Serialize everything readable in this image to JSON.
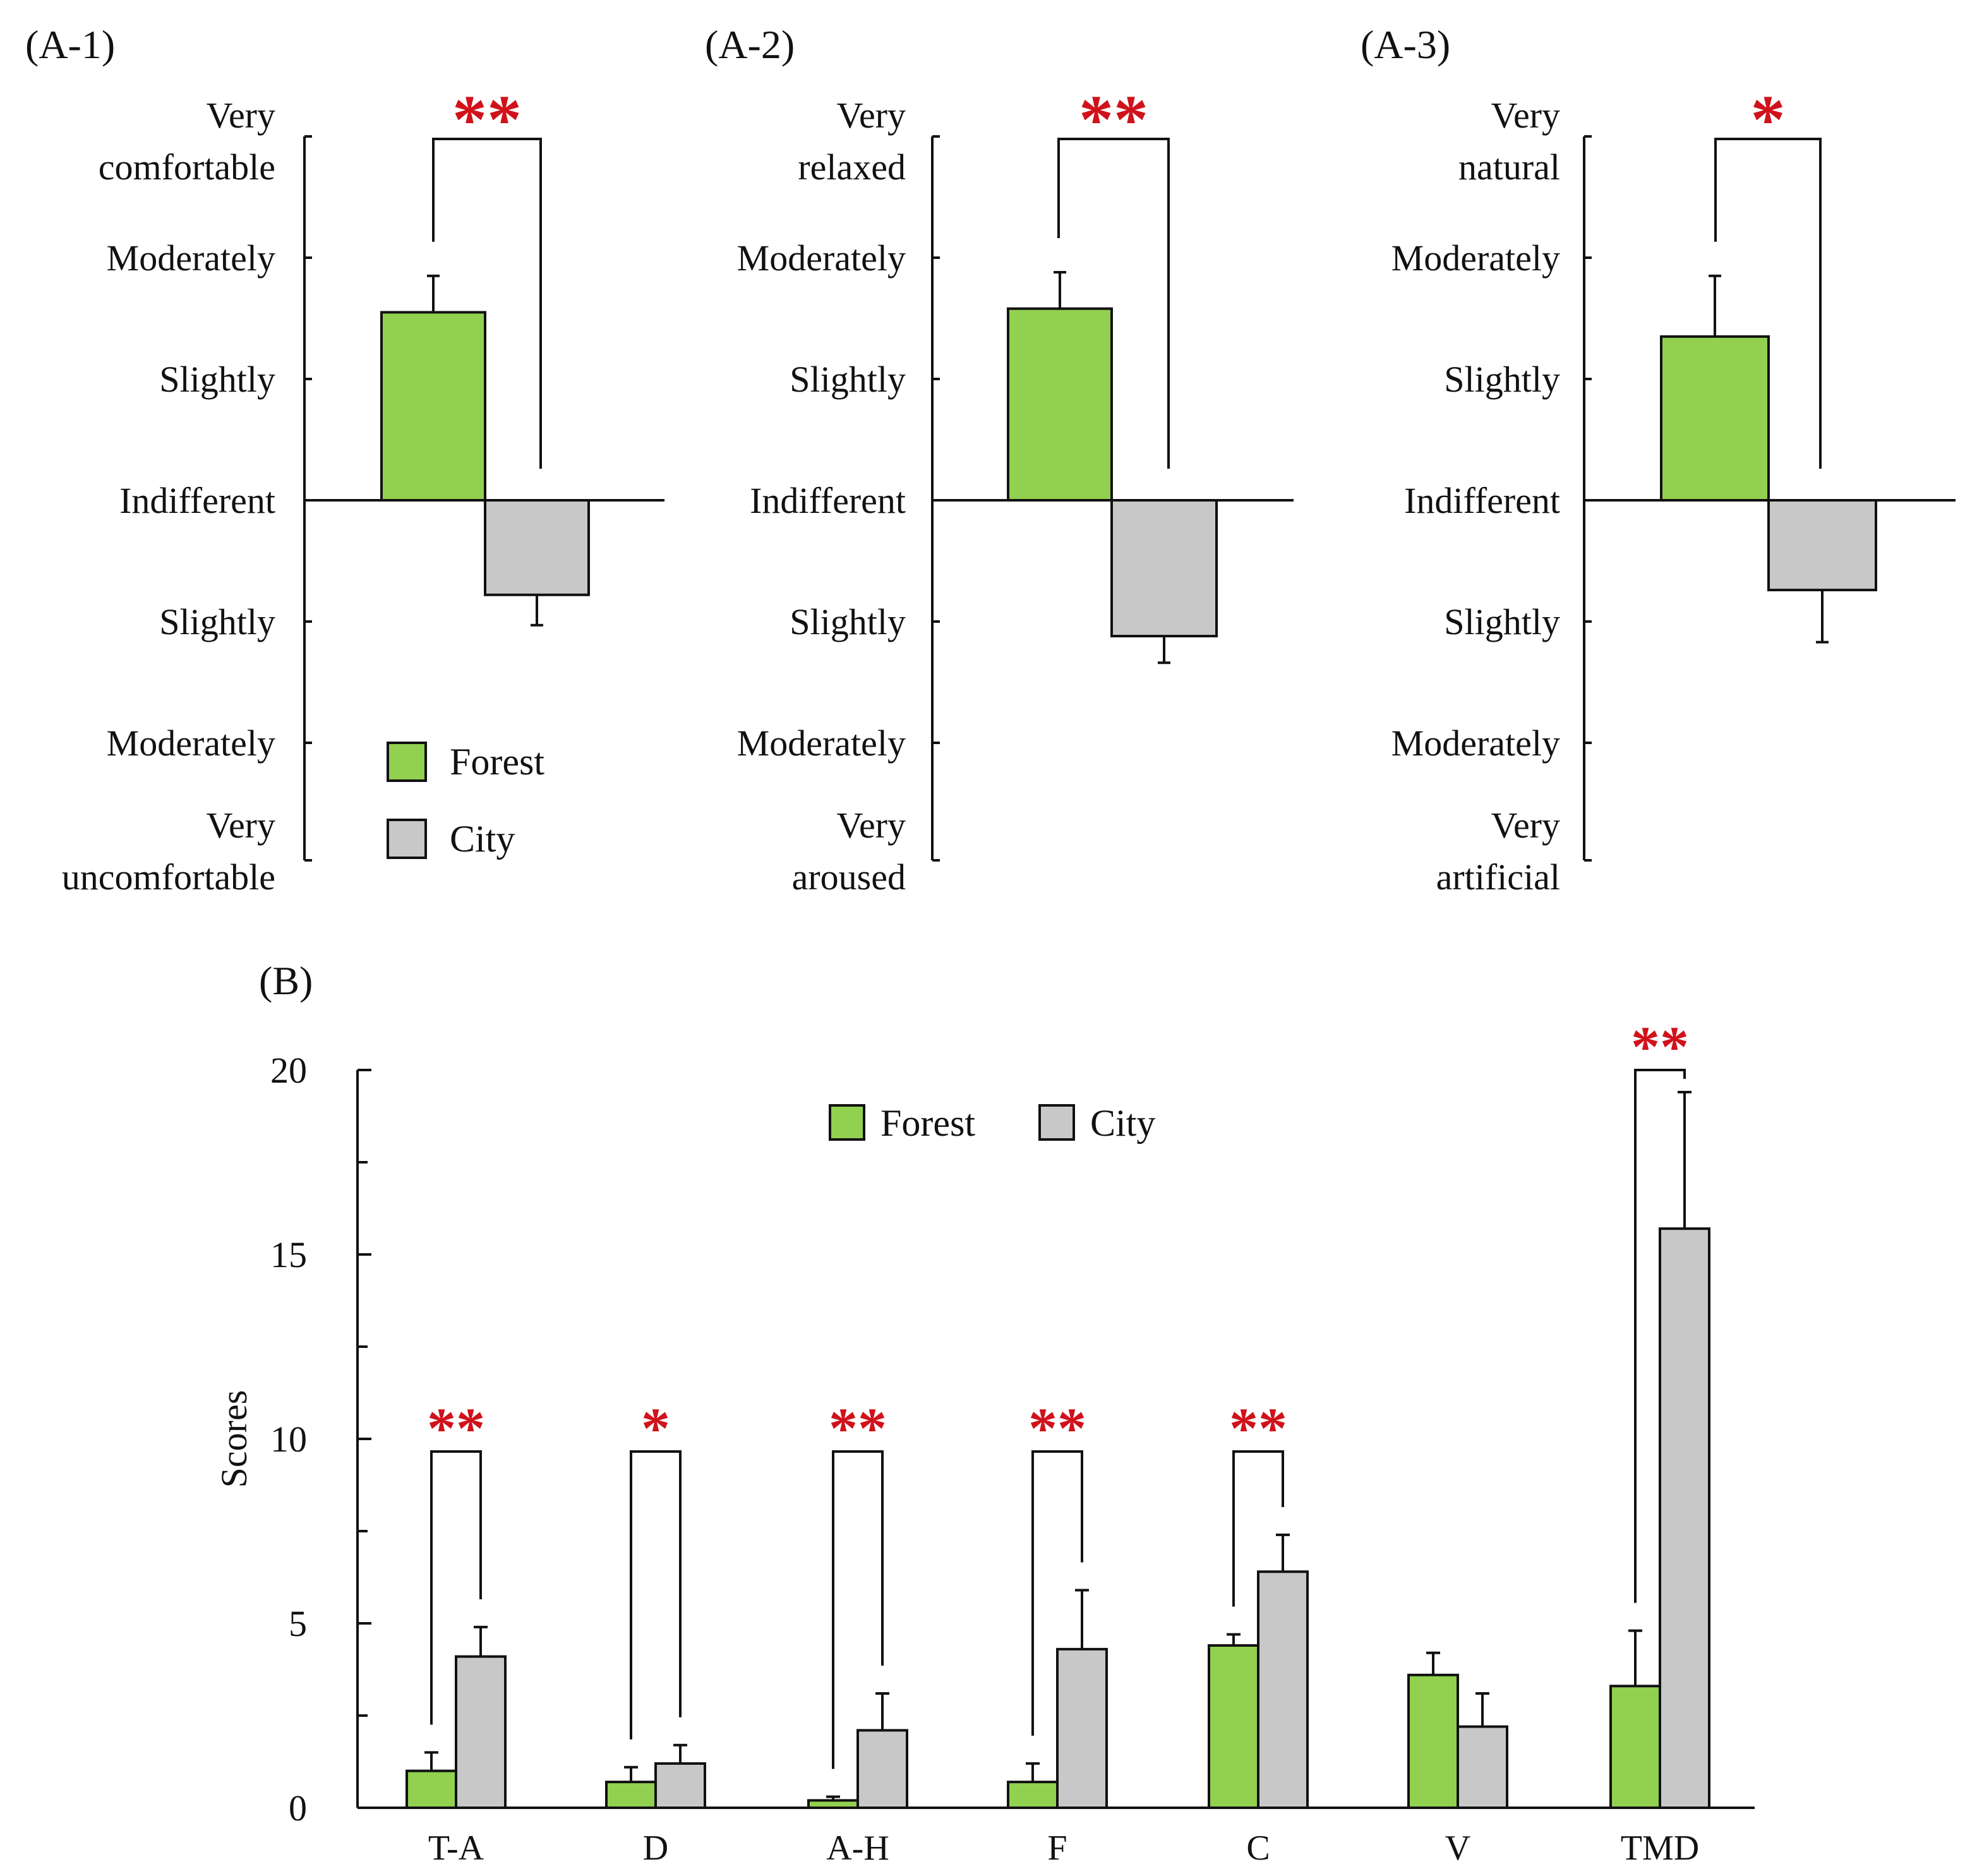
{
  "colors": {
    "forest": "#92d050",
    "city": "#c8c8c8",
    "significance": "#d0121b"
  },
  "chart_data": [
    {
      "id": "A-1",
      "panel_label": "(A-1)",
      "type": "bar",
      "categories": [
        "Forest",
        "City"
      ],
      "values": [
        1.55,
        -0.78
      ],
      "errors": [
        0.3,
        0.25
      ],
      "ylim": [
        -3,
        3
      ],
      "y_tick_labels": [
        "Very uncomfortable|",
        "Moderately|",
        "Slightly|",
        "Indifferent|",
        "Slightly|",
        "Moderately|",
        "Very comfortable|"
      ],
      "scale_top": [
        "Very",
        "comfortable"
      ],
      "scale_bottom": [
        "Very",
        "uncomfortable"
      ],
      "significance": "**",
      "legend": [
        "Forest",
        "City"
      ]
    },
    {
      "id": "A-2",
      "panel_label": "(A-2)",
      "type": "bar",
      "categories": [
        "Forest",
        "City"
      ],
      "values": [
        1.58,
        -1.12
      ],
      "errors": [
        0.3,
        0.22
      ],
      "ylim": [
        -3,
        3
      ],
      "scale_top": [
        "Very",
        "relaxed"
      ],
      "scale_bottom": [
        "Very",
        "aroused"
      ],
      "significance": "**"
    },
    {
      "id": "A-3",
      "panel_label": "(A-3)",
      "type": "bar",
      "categories": [
        "Forest",
        "City"
      ],
      "values": [
        1.35,
        -0.74
      ],
      "errors": [
        0.5,
        0.43
      ],
      "ylim": [
        -3,
        3
      ],
      "scale_top": [
        "Very",
        "natural"
      ],
      "scale_bottom": [
        "Very",
        "artificial"
      ],
      "significance": "*"
    },
    {
      "id": "B",
      "panel_label": "(B)",
      "type": "bar",
      "ylabel": "Scores",
      "ylim": [
        0,
        20
      ],
      "y_ticks": [
        0,
        5,
        10,
        15,
        20
      ],
      "categories": [
        "T-A",
        "D",
        "A-H",
        "F",
        "C",
        "V",
        "TMD"
      ],
      "series": [
        {
          "name": "Forest",
          "values": [
            1.0,
            0.7,
            0.2,
            0.7,
            4.4,
            3.6,
            3.3
          ],
          "errors": [
            0.5,
            0.4,
            0.1,
            0.5,
            0.3,
            0.6,
            1.5
          ]
        },
        {
          "name": "City",
          "values": [
            4.1,
            1.2,
            2.1,
            4.3,
            6.4,
            2.2,
            15.7
          ],
          "errors": [
            0.8,
            0.5,
            1.0,
            1.6,
            1.0,
            0.9,
            3.7
          ]
        }
      ],
      "significance": [
        "**",
        "*",
        "**",
        "**",
        "**",
        "",
        "**"
      ],
      "legend": [
        "Forest",
        "City"
      ]
    }
  ],
  "a_panel_scale": {
    "upper": [
      "Moderately",
      "Slightly"
    ],
    "middle": "Indifferent",
    "lower": [
      "Slightly",
      "Moderately"
    ]
  }
}
